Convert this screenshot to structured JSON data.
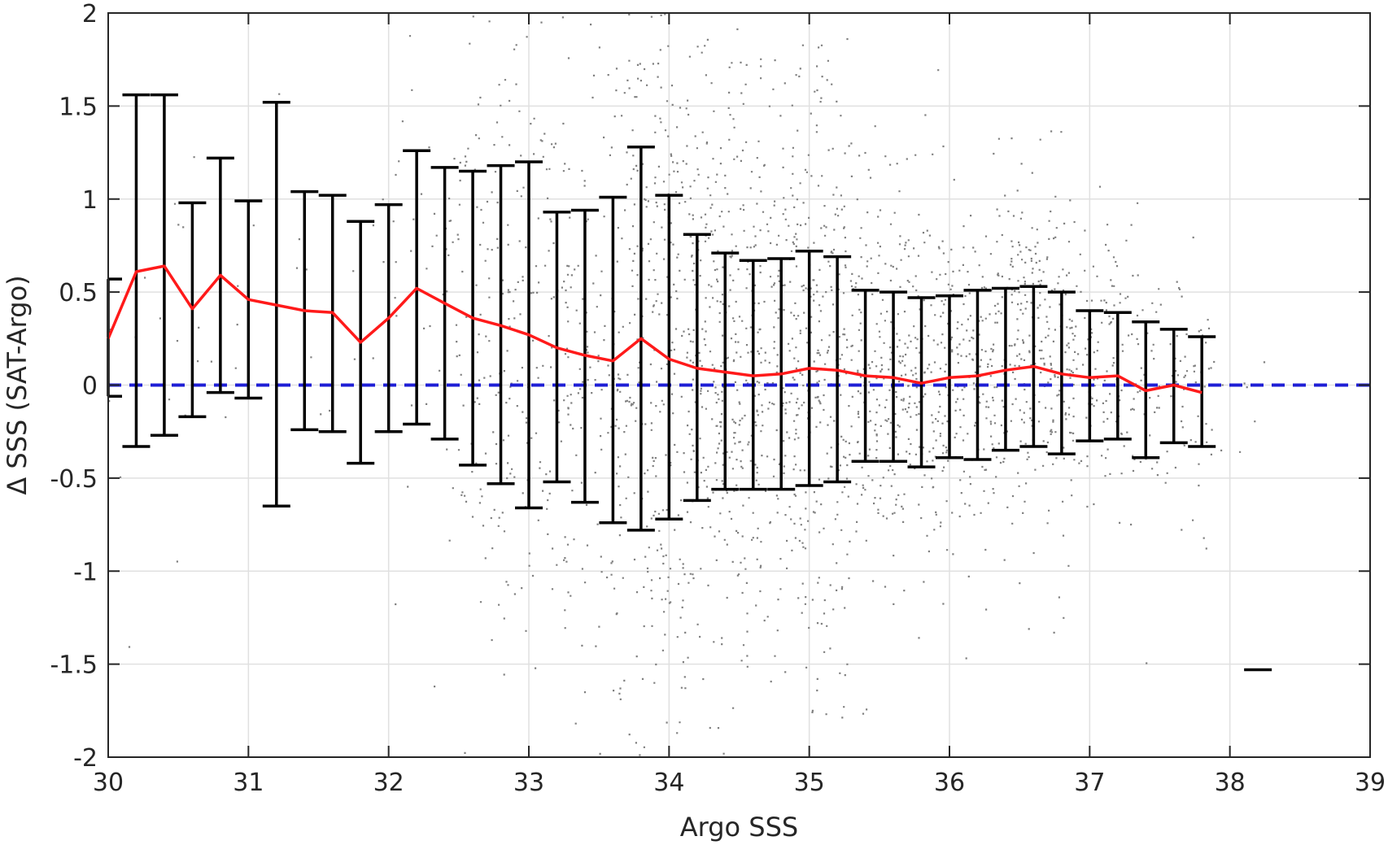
{
  "chart_data": {
    "type": "scatter",
    "xlabel": "Argo SSS",
    "ylabel": "Δ SSS (SAT-Argo)",
    "xlim": [
      30,
      39
    ],
    "ylim": [
      -2,
      2
    ],
    "xticks": [
      30,
      31,
      32,
      33,
      34,
      35,
      36,
      37,
      38,
      39
    ],
    "xtick_labels": [
      "30",
      "31",
      "32",
      "33",
      "34",
      "35",
      "36",
      "37",
      "38",
      "39"
    ],
    "yticks": [
      -2,
      -1.5,
      -1,
      -0.5,
      0,
      0.5,
      1,
      1.5,
      2
    ],
    "ytick_labels": [
      "-2",
      "-1.5",
      "-1",
      "-0.5",
      "0",
      "0.5",
      "1",
      "1.5",
      "2"
    ],
    "grid": true,
    "colors": {
      "scatter": "#808080",
      "mean_line": "#ff1a1a",
      "zero_line": "#1f1fd6",
      "error_bars": "#000000",
      "grid": "#e0e0e0"
    },
    "zero_line": {
      "y": 0,
      "style": "dashed"
    },
    "mean_and_std": [
      {
        "x": 30.0,
        "mean": 0.25,
        "low": -0.06,
        "high": 0.57
      },
      {
        "x": 30.2,
        "mean": 0.61,
        "low": -0.33,
        "high": 1.56
      },
      {
        "x": 30.4,
        "mean": 0.64,
        "low": -0.27,
        "high": 1.56
      },
      {
        "x": 30.6,
        "mean": 0.41,
        "low": -0.17,
        "high": 0.98
      },
      {
        "x": 30.8,
        "mean": 0.59,
        "low": -0.04,
        "high": 1.22
      },
      {
        "x": 31.0,
        "mean": 0.46,
        "low": -0.07,
        "high": 0.99
      },
      {
        "x": 31.2,
        "mean": 0.43,
        "low": -0.65,
        "high": 1.52
      },
      {
        "x": 31.4,
        "mean": 0.4,
        "low": -0.24,
        "high": 1.04
      },
      {
        "x": 31.6,
        "mean": 0.39,
        "low": -0.25,
        "high": 1.02
      },
      {
        "x": 31.8,
        "mean": 0.23,
        "low": -0.42,
        "high": 0.88
      },
      {
        "x": 32.0,
        "mean": 0.36,
        "low": -0.25,
        "high": 0.97
      },
      {
        "x": 32.2,
        "mean": 0.52,
        "low": -0.21,
        "high": 1.26
      },
      {
        "x": 32.4,
        "mean": 0.44,
        "low": -0.29,
        "high": 1.17
      },
      {
        "x": 32.6,
        "mean": 0.36,
        "low": -0.43,
        "high": 1.15
      },
      {
        "x": 32.8,
        "mean": 0.32,
        "low": -0.53,
        "high": 1.18
      },
      {
        "x": 33.0,
        "mean": 0.27,
        "low": -0.66,
        "high": 1.2
      },
      {
        "x": 33.2,
        "mean": 0.2,
        "low": -0.52,
        "high": 0.93
      },
      {
        "x": 33.4,
        "mean": 0.16,
        "low": -0.63,
        "high": 0.94
      },
      {
        "x": 33.6,
        "mean": 0.13,
        "low": -0.74,
        "high": 1.01
      },
      {
        "x": 33.8,
        "mean": 0.25,
        "low": -0.78,
        "high": 1.28
      },
      {
        "x": 34.0,
        "mean": 0.14,
        "low": -0.72,
        "high": 1.02
      },
      {
        "x": 34.2,
        "mean": 0.09,
        "low": -0.62,
        "high": 0.81
      },
      {
        "x": 34.4,
        "mean": 0.07,
        "low": -0.56,
        "high": 0.71
      },
      {
        "x": 34.6,
        "mean": 0.05,
        "low": -0.56,
        "high": 0.67
      },
      {
        "x": 34.8,
        "mean": 0.06,
        "low": -0.56,
        "high": 0.68
      },
      {
        "x": 35.0,
        "mean": 0.09,
        "low": -0.54,
        "high": 0.72
      },
      {
        "x": 35.2,
        "mean": 0.08,
        "low": -0.52,
        "high": 0.69
      },
      {
        "x": 35.4,
        "mean": 0.05,
        "low": -0.41,
        "high": 0.51
      },
      {
        "x": 35.6,
        "mean": 0.04,
        "low": -0.41,
        "high": 0.5
      },
      {
        "x": 35.8,
        "mean": 0.01,
        "low": -0.44,
        "high": 0.47
      },
      {
        "x": 36.0,
        "mean": 0.04,
        "low": -0.39,
        "high": 0.48
      },
      {
        "x": 36.2,
        "mean": 0.05,
        "low": -0.4,
        "high": 0.51
      },
      {
        "x": 36.4,
        "mean": 0.08,
        "low": -0.35,
        "high": 0.52
      },
      {
        "x": 36.6,
        "mean": 0.1,
        "low": -0.33,
        "high": 0.53
      },
      {
        "x": 36.8,
        "mean": 0.06,
        "low": -0.37,
        "high": 0.5
      },
      {
        "x": 37.0,
        "mean": 0.04,
        "low": -0.3,
        "high": 0.4
      },
      {
        "x": 37.2,
        "mean": 0.05,
        "low": -0.29,
        "high": 0.39
      },
      {
        "x": 37.4,
        "mean": -0.03,
        "low": -0.39,
        "high": 0.34
      },
      {
        "x": 37.6,
        "mean": 0.0,
        "low": -0.31,
        "high": 0.3
      },
      {
        "x": 37.8,
        "mean": -0.04,
        "low": -0.33,
        "high": 0.26
      },
      {
        "x": 38.2,
        "mean": null,
        "low": -1.53,
        "high": -1.53
      }
    ],
    "scatter_point_count_approx": "many thousands (dense cloud)"
  }
}
